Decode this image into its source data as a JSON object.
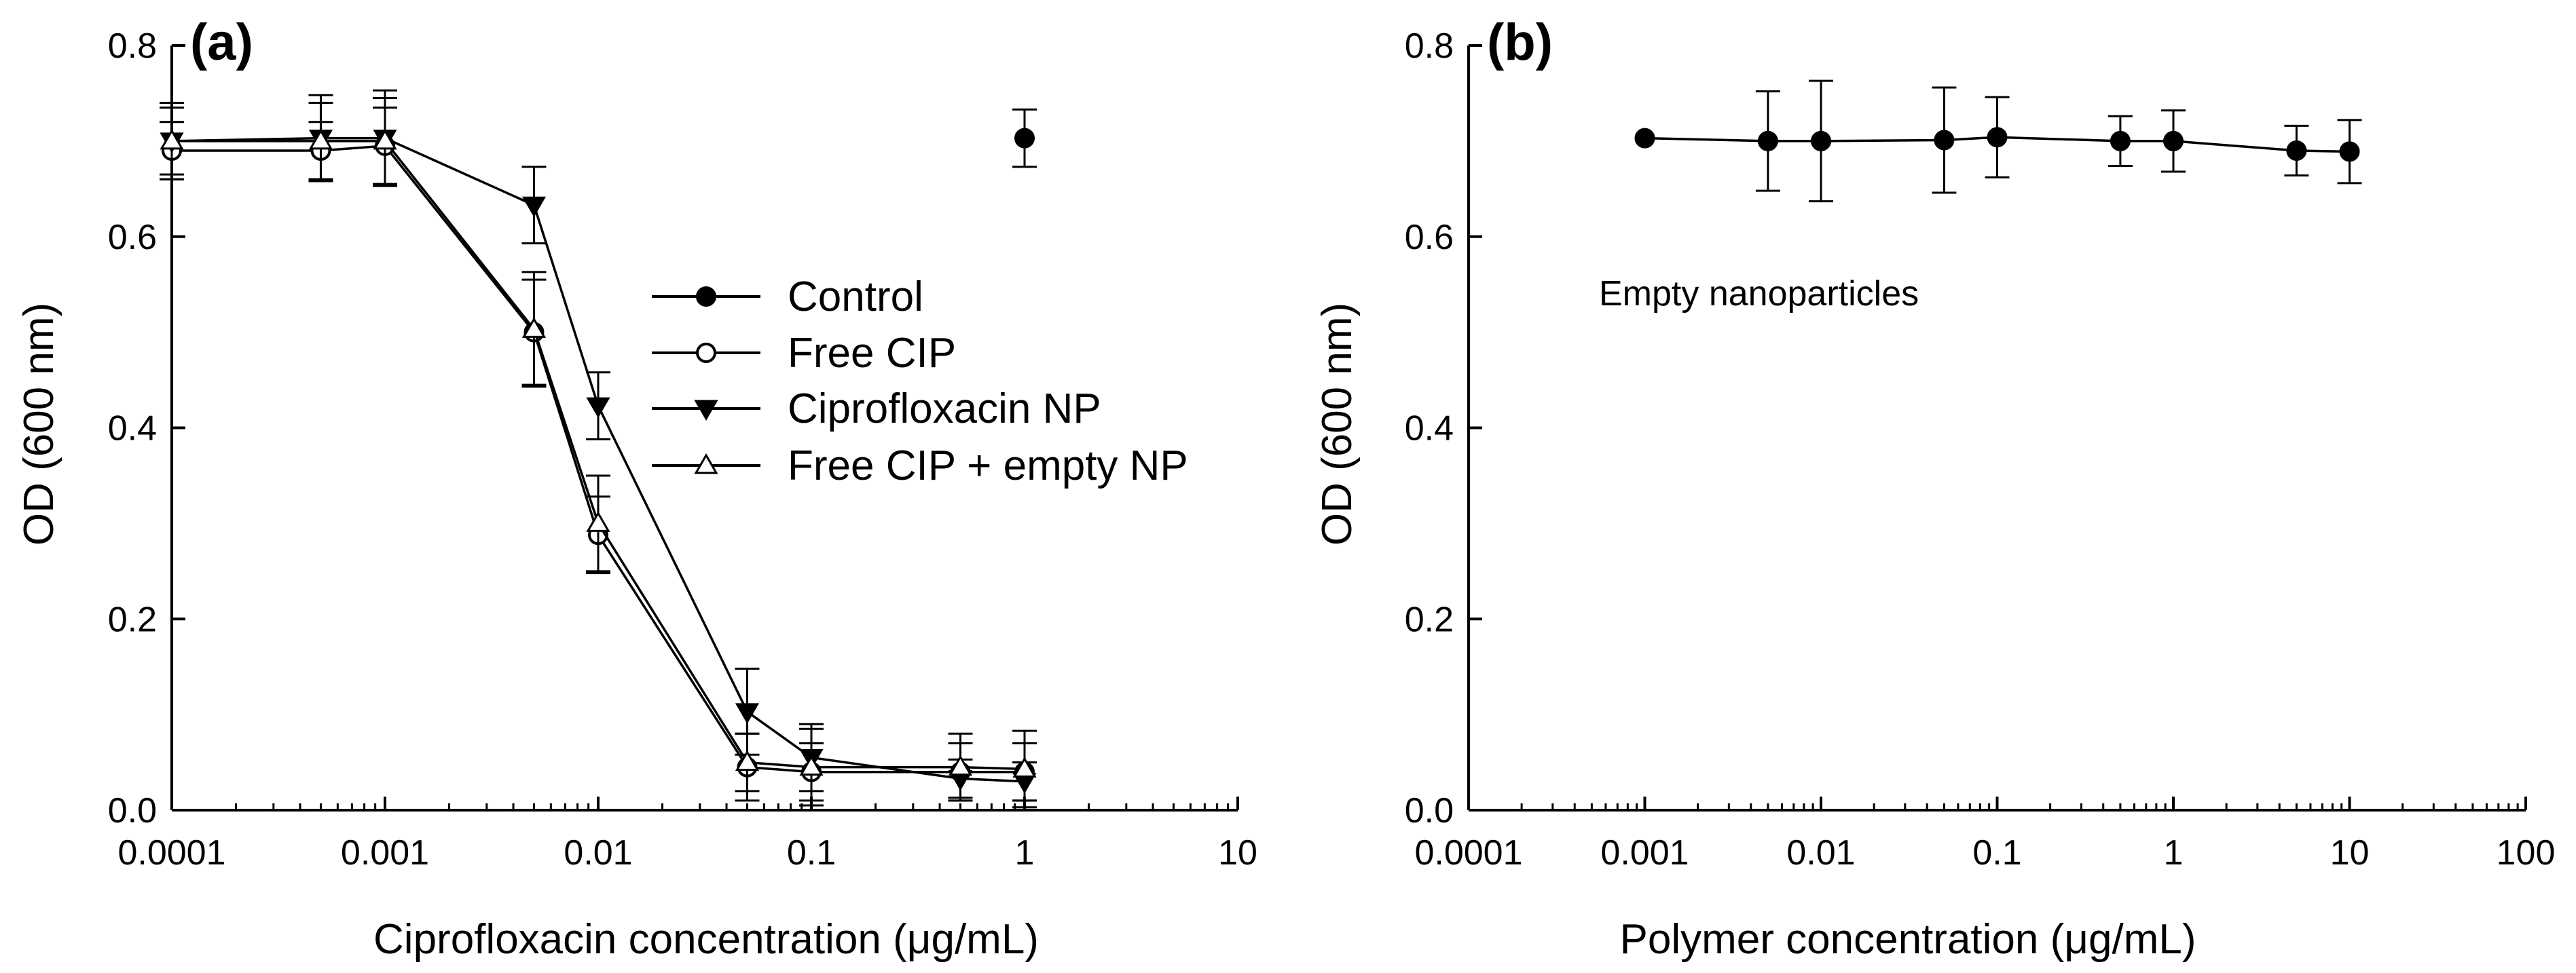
{
  "chart_data": [
    {
      "type": "line",
      "panel_label": "(a)",
      "xscale": "log",
      "xlim": [
        0.0001,
        10
      ],
      "ylim": [
        0,
        0.8
      ],
      "xticks": [
        "0.0001",
        "0.001",
        "0.01",
        "0.1",
        "1",
        "10"
      ],
      "yticks": [
        "0.0",
        "0.2",
        "0.4",
        "0.6",
        "0.8"
      ],
      "xlabel": "Ciprofloxacin concentration (μg/mL)",
      "ylabel": "OD (600 nm)",
      "legend_position": "center-right",
      "series": [
        {
          "name": "Control",
          "marker": "circle-filled",
          "connected": true,
          "points": [
            {
              "x": 1,
              "y": 0.703,
              "err": 0.03
            }
          ]
        },
        {
          "name": "Free CIP",
          "marker": "circle-open",
          "connected": true,
          "points": [
            {
              "x": 0.0001,
              "y": 0.69,
              "err": 0.03
            },
            {
              "x": 0.0005,
              "y": 0.69,
              "err": 0.03
            },
            {
              "x": 0.001,
              "y": 0.695,
              "err": 0.04
            },
            {
              "x": 0.005,
              "y": 0.5,
              "err": 0.055
            },
            {
              "x": 0.01,
              "y": 0.288,
              "err": 0.04
            },
            {
              "x": 0.05,
              "y": 0.045,
              "err": 0.035
            },
            {
              "x": 0.1,
              "y": 0.04,
              "err": 0.03
            },
            {
              "x": 0.5,
              "y": 0.04,
              "err": 0.03
            },
            {
              "x": 1,
              "y": 0.04,
              "err": 0.03
            }
          ]
        },
        {
          "name": "Ciprofloxacin NP",
          "marker": "triangle-down-filled",
          "connected": true,
          "points": [
            {
              "x": 0.0001,
              "y": 0.7,
              "err": 0.04
            },
            {
              "x": 0.0005,
              "y": 0.703,
              "err": 0.045
            },
            {
              "x": 0.001,
              "y": 0.703,
              "err": 0.05
            },
            {
              "x": 0.005,
              "y": 0.633,
              "err": 0.04
            },
            {
              "x": 0.01,
              "y": 0.423,
              "err": 0.035
            },
            {
              "x": 0.05,
              "y": 0.103,
              "err": 0.045
            },
            {
              "x": 0.1,
              "y": 0.055,
              "err": 0.035
            },
            {
              "x": 0.5,
              "y": 0.033,
              "err": 0.02
            },
            {
              "x": 1,
              "y": 0.03,
              "err": 0.02
            }
          ]
        },
        {
          "name": "Free CIP + empty NP",
          "marker": "triangle-up-open",
          "connected": true,
          "points": [
            {
              "x": 0.0001,
              "y": 0.7,
              "err": 0.035
            },
            {
              "x": 0.0005,
              "y": 0.7,
              "err": 0.04
            },
            {
              "x": 0.001,
              "y": 0.7,
              "err": 0.045
            },
            {
              "x": 0.005,
              "y": 0.503,
              "err": 0.06
            },
            {
              "x": 0.01,
              "y": 0.3,
              "err": 0.05
            },
            {
              "x": 0.05,
              "y": 0.05,
              "err": 0.03
            },
            {
              "x": 0.1,
              "y": 0.045,
              "err": 0.04
            },
            {
              "x": 0.5,
              "y": 0.045,
              "err": 0.035
            },
            {
              "x": 1,
              "y": 0.043,
              "err": 0.04
            }
          ]
        }
      ]
    },
    {
      "type": "line",
      "panel_label": "(b)",
      "xscale": "log",
      "xlim": [
        0.0001,
        100
      ],
      "ylim": [
        0,
        0.8
      ],
      "xticks": [
        "0.0001",
        "0.001",
        "0.01",
        "0.1",
        "1",
        "10",
        "100"
      ],
      "yticks": [
        "0.0",
        "0.2",
        "0.4",
        "0.6",
        "0.8"
      ],
      "xlabel": "Polymer concentration (μg/mL)",
      "ylabel": "OD (600 nm)",
      "annotation": "Empty nanoparticles",
      "series": [
        {
          "name": "Empty nanoparticles",
          "marker": "circle-filled",
          "connected": true,
          "points": [
            {
              "x": 0.001,
              "y": 0.703,
              "err": 0
            },
            {
              "x": 0.005,
              "y": 0.7,
              "err": 0.052
            },
            {
              "x": 0.01,
              "y": 0.7,
              "err": 0.063
            },
            {
              "x": 0.05,
              "y": 0.701,
              "err": 0.055
            },
            {
              "x": 0.1,
              "y": 0.704,
              "err": 0.042
            },
            {
              "x": 0.5,
              "y": 0.7,
              "err": 0.026
            },
            {
              "x": 1,
              "y": 0.7,
              "err": 0.032
            },
            {
              "x": 5,
              "y": 0.69,
              "err": 0.026
            },
            {
              "x": 10,
              "y": 0.689,
              "err": 0.033
            }
          ]
        }
      ]
    }
  ]
}
